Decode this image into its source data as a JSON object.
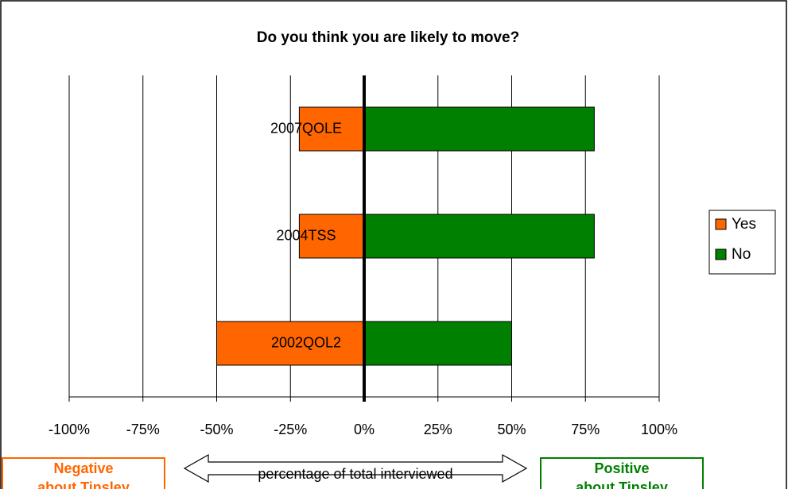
{
  "chart_data": {
    "type": "bar",
    "orientation": "horizontal",
    "stacked": "diverging",
    "title": "Do you think you are likely to move?",
    "categories": [
      "2007QOLE",
      "2004TSS",
      "2002QOL2"
    ],
    "series": [
      {
        "name": "Yes",
        "color": "#ff6600",
        "values": [
          -22,
          -22,
          -50
        ]
      },
      {
        "name": "No",
        "color": "#008000",
        "values": [
          78,
          78,
          50
        ]
      }
    ],
    "xlim": [
      -100,
      100
    ],
    "xticks": [
      {
        "value": -100,
        "label": "-100%"
      },
      {
        "value": -75,
        "label": "-75%"
      },
      {
        "value": -50,
        "label": "-50%"
      },
      {
        "value": -25,
        "label": "-25%"
      },
      {
        "value": 0,
        "label": "0%"
      },
      {
        "value": 25,
        "label": "25%"
      },
      {
        "value": 50,
        "label": "50%"
      },
      {
        "value": 75,
        "label": "75%"
      },
      {
        "value": 100,
        "label": "100%"
      }
    ],
    "grid": true,
    "legend": "right",
    "xlabel": "percentage of total interviewed",
    "negative_label": [
      "Negative",
      "about Tinsley"
    ],
    "positive_label": [
      "Positive",
      "about Tinsley"
    ]
  }
}
